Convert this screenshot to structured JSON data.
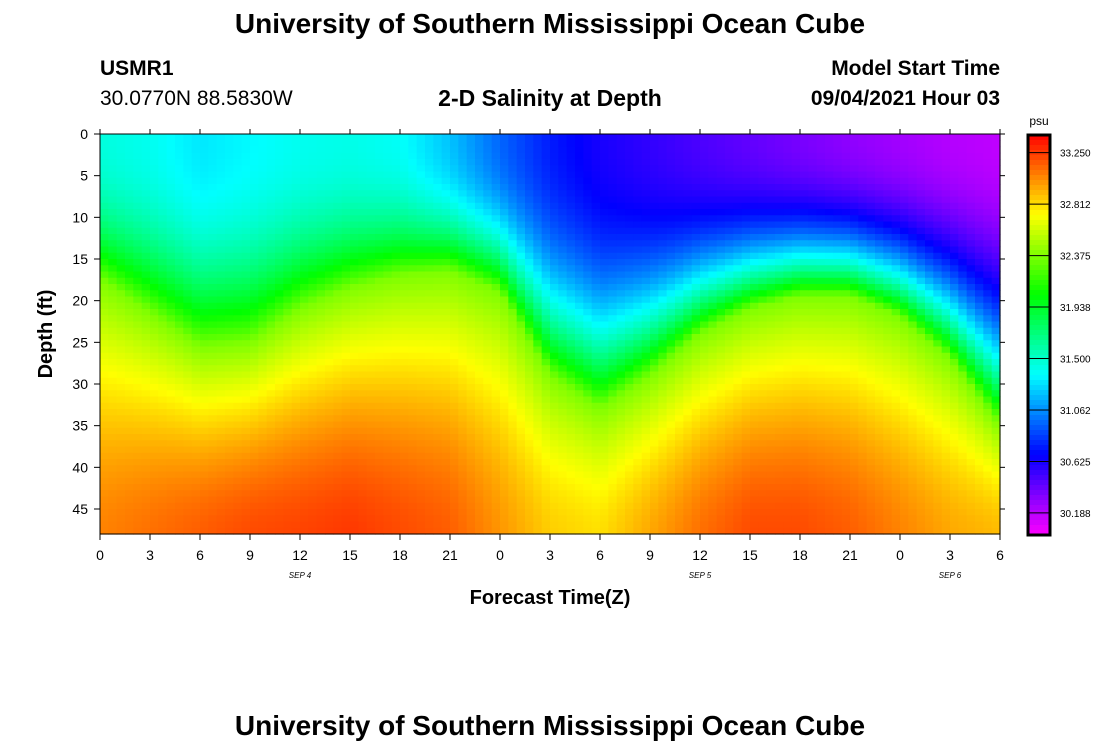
{
  "header": {
    "title": "University of Southern Mississippi Ocean Cube",
    "station_id": "USMR1",
    "station_location": "30.0770N  88.5830W",
    "plot_title": "2-D Salinity at Depth",
    "model_start_label": "Model Start Time",
    "model_start_value": "09/04/2021 Hour 03"
  },
  "footer": {
    "title": "University of Southern Mississippi Ocean Cube"
  },
  "colors": {
    "background": "#ffffff",
    "text": "#000000"
  },
  "chart_data": {
    "type": "heatmap",
    "title": "2-D Salinity at Depth",
    "xlabel": "Forecast Time(Z)",
    "ylabel": "Depth (ft)",
    "x_range_hours": [
      0,
      54
    ],
    "y_range_ft": [
      0,
      48
    ],
    "y_inverted": true,
    "x_ticks": [
      {
        "h": 0,
        "label": "0"
      },
      {
        "h": 3,
        "label": "3"
      },
      {
        "h": 6,
        "label": "6"
      },
      {
        "h": 9,
        "label": "9"
      },
      {
        "h": 12,
        "label": "12"
      },
      {
        "h": 15,
        "label": "15"
      },
      {
        "h": 18,
        "label": "18"
      },
      {
        "h": 21,
        "label": "21"
      },
      {
        "h": 24,
        "label": "0"
      },
      {
        "h": 27,
        "label": "3"
      },
      {
        "h": 30,
        "label": "6"
      },
      {
        "h": 33,
        "label": "9"
      },
      {
        "h": 36,
        "label": "12"
      },
      {
        "h": 39,
        "label": "15"
      },
      {
        "h": 42,
        "label": "18"
      },
      {
        "h": 45,
        "label": "21"
      },
      {
        "h": 48,
        "label": "0"
      },
      {
        "h": 51,
        "label": "3"
      },
      {
        "h": 54,
        "label": "6"
      }
    ],
    "date_labels": [
      {
        "h": 12,
        "label": "SEP 4"
      },
      {
        "h": 36,
        "label": "SEP 5"
      },
      {
        "h": 51,
        "label": "SEP 6"
      }
    ],
    "y_ticks": [
      0,
      5,
      10,
      15,
      20,
      25,
      30,
      35,
      40,
      45
    ],
    "colorbar": {
      "unit": "psu",
      "min": 30.188,
      "max": 33.25,
      "range": [
        30.0,
        33.4
      ],
      "tick_values": [
        33.25,
        32.812,
        32.375,
        31.938,
        31.5,
        31.062,
        30.625,
        30.188
      ],
      "tick_labels": [
        "33.250",
        "32.812",
        "32.375",
        "31.938",
        "31.500",
        "31.062",
        "30.625",
        "30.188"
      ]
    },
    "isoline_32_375_depth_ft": [
      {
        "h": 0,
        "depth": 17.5
      },
      {
        "h": 3,
        "depth": 21.5
      },
      {
        "h": 6,
        "depth": 25.5
      },
      {
        "h": 9,
        "depth": 25.0
      },
      {
        "h": 12,
        "depth": 21.0
      },
      {
        "h": 15,
        "depth": 18.5
      },
      {
        "h": 18,
        "depth": 17.0
      },
      {
        "h": 21,
        "depth": 16.5
      },
      {
        "h": 24,
        "depth": 19.0
      },
      {
        "h": 27,
        "depth": 29.0
      },
      {
        "h": 30,
        "depth": 33.0
      },
      {
        "h": 33,
        "depth": 29.0
      },
      {
        "h": 36,
        "depth": 24.0
      },
      {
        "h": 39,
        "depth": 21.0
      },
      {
        "h": 42,
        "depth": 19.5
      },
      {
        "h": 45,
        "depth": 19.5
      },
      {
        "h": 48,
        "depth": 22.0
      },
      {
        "h": 51,
        "depth": 27.0
      },
      {
        "h": 54,
        "depth": 35.0
      }
    ],
    "surface_salinity_psu": [
      {
        "h": 0,
        "v": 31.45
      },
      {
        "h": 3,
        "v": 31.4
      },
      {
        "h": 6,
        "v": 31.3
      },
      {
        "h": 9,
        "v": 31.35
      },
      {
        "h": 12,
        "v": 31.4
      },
      {
        "h": 15,
        "v": 31.42
      },
      {
        "h": 18,
        "v": 31.38
      },
      {
        "h": 21,
        "v": 31.2
      },
      {
        "h": 24,
        "v": 30.95
      },
      {
        "h": 27,
        "v": 30.75
      },
      {
        "h": 30,
        "v": 30.62
      },
      {
        "h": 33,
        "v": 30.55
      },
      {
        "h": 36,
        "v": 30.48
      },
      {
        "h": 39,
        "v": 30.42
      },
      {
        "h": 42,
        "v": 30.36
      },
      {
        "h": 45,
        "v": 30.3
      },
      {
        "h": 48,
        "v": 30.25
      },
      {
        "h": 51,
        "v": 30.2
      },
      {
        "h": 54,
        "v": 30.17
      }
    ],
    "bottom_salinity_psu": [
      {
        "h": 0,
        "v": 33.05
      },
      {
        "h": 3,
        "v": 33.1
      },
      {
        "h": 6,
        "v": 33.15
      },
      {
        "h": 9,
        "v": 33.2
      },
      {
        "h": 12,
        "v": 33.22
      },
      {
        "h": 15,
        "v": 33.25
      },
      {
        "h": 18,
        "v": 33.2
      },
      {
        "h": 21,
        "v": 33.15
      },
      {
        "h": 24,
        "v": 33.0
      },
      {
        "h": 27,
        "v": 32.85
      },
      {
        "h": 30,
        "v": 32.8
      },
      {
        "h": 33,
        "v": 32.95
      },
      {
        "h": 36,
        "v": 33.1
      },
      {
        "h": 39,
        "v": 33.2
      },
      {
        "h": 42,
        "v": 33.2
      },
      {
        "h": 45,
        "v": 33.15
      },
      {
        "h": 48,
        "v": 33.05
      },
      {
        "h": 51,
        "v": 32.95
      },
      {
        "h": 54,
        "v": 32.9
      }
    ]
  }
}
